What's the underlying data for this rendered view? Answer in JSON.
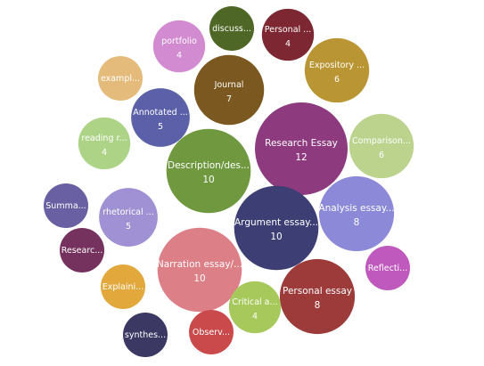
{
  "chart_data": {
    "type": "bubble",
    "title": "",
    "items": [
      {
        "label": "Research Essay",
        "value": 12,
        "value_text": "12",
        "color": "#8e3a7f"
      },
      {
        "label": "Argument essay...",
        "value": 10,
        "value_text": "10",
        "color": "#3d3f74"
      },
      {
        "label": "Description/des...",
        "value": 10,
        "value_text": "10",
        "color": "#6f983f"
      },
      {
        "label": "Narration essay/...",
        "value": 10,
        "value_text": "10",
        "color": "#dc7f86"
      },
      {
        "label": "Personal essay",
        "value": 8,
        "value_text": "8",
        "color": "#9c3b3a"
      },
      {
        "label": "Analysis essay...",
        "value": 8,
        "value_text": "8",
        "color": "#8c8ad8"
      },
      {
        "label": "Journal",
        "value": 7,
        "value_text": "7",
        "color": "#7b5820"
      },
      {
        "label": "Comparison...",
        "value": 6,
        "value_text": "6",
        "color": "#bcd38e"
      },
      {
        "label": "Expository ...",
        "value": 6,
        "value_text": "6",
        "color": "#ba9533"
      },
      {
        "label": "Annotated ...",
        "value": 5,
        "value_text": "5",
        "color": "#5b60a9"
      },
      {
        "label": "rhetorical ...",
        "value": 5,
        "value_text": "5",
        "color": "#9f91d4"
      },
      {
        "label": "portfolio",
        "value": 4,
        "value_text": "4",
        "color": "#d28bd0"
      },
      {
        "label": "Personal ...",
        "value": 4,
        "value_text": "4",
        "color": "#7c2732"
      },
      {
        "label": "reading r...",
        "value": 4,
        "value_text": "4",
        "color": "#add387"
      },
      {
        "label": "Critical a...",
        "value": 4,
        "value_text": "4",
        "color": "#a7c95c"
      },
      {
        "label": "discuss...",
        "value": 3,
        "value_text": "",
        "color": "#4f6726"
      },
      {
        "label": "exampl...",
        "value": 3,
        "value_text": "",
        "color": "#e4bb7a"
      },
      {
        "label": "Summa...",
        "value": 3,
        "value_text": "",
        "color": "#695fa3"
      },
      {
        "label": "Researc...",
        "value": 3,
        "value_text": "",
        "color": "#75325e"
      },
      {
        "label": "Explaini...",
        "value": 3,
        "value_text": "",
        "color": "#e2a83c"
      },
      {
        "label": "Reflecti...",
        "value": 3,
        "value_text": "",
        "color": "#c059be"
      },
      {
        "label": "Observ...",
        "value": 3,
        "value_text": "",
        "color": "#ca4a4b"
      },
      {
        "label": "synthes...",
        "value": 3,
        "value_text": "",
        "color": "#3b3964"
      }
    ]
  }
}
